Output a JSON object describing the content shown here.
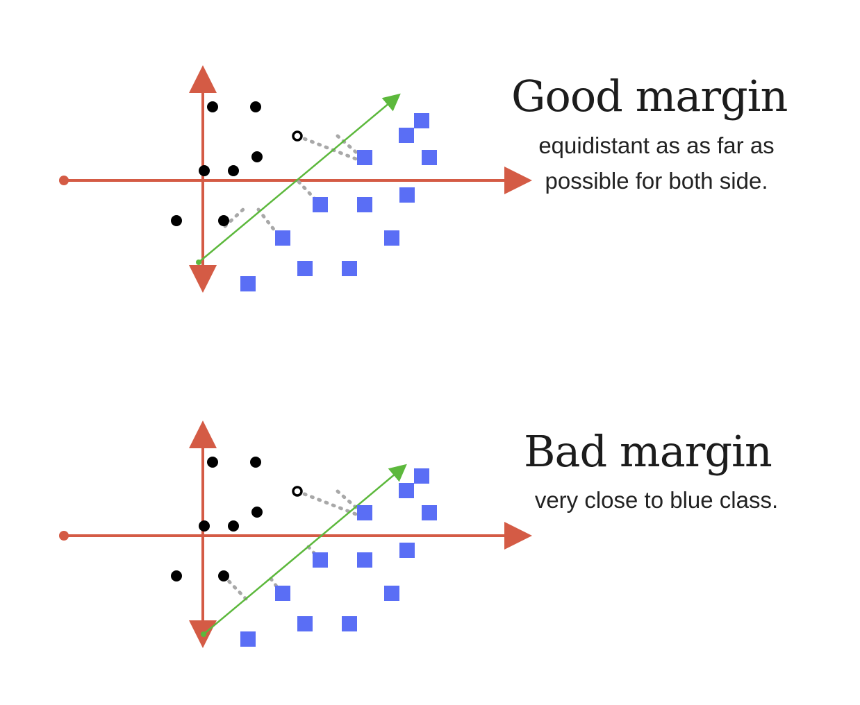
{
  "colors": {
    "axis": "#d45b45",
    "hyperplane": "#5cb83c",
    "margin_line": "#a8a8a8",
    "black_class": "#000000",
    "blue_class": "#5a6ef5"
  },
  "panels": [
    {
      "id": "good",
      "title": "Good margin",
      "caption_lines": [
        "equidistant as as far as",
        "possible for both side."
      ]
    },
    {
      "id": "bad",
      "title": "Bad margin",
      "caption_lines": [
        "very close to blue class."
      ]
    }
  ]
}
